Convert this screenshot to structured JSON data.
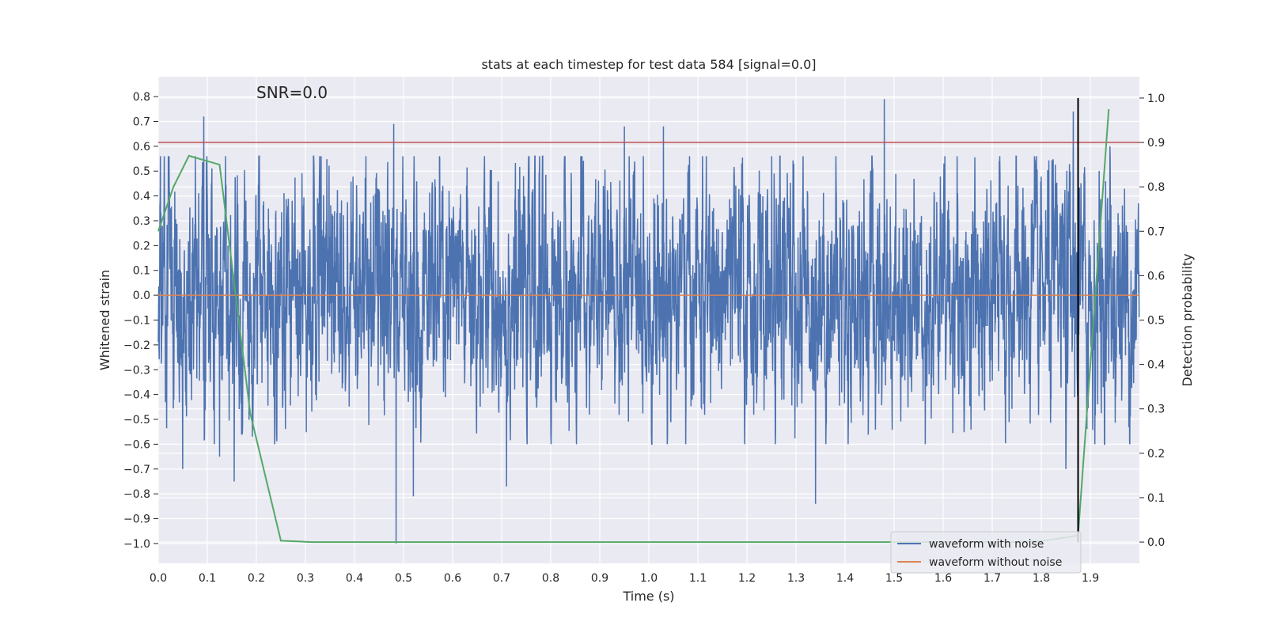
{
  "colors": {
    "background": "#ffffff",
    "plot_bg": "#eaeaf2",
    "grid": "#ffffff",
    "noise": "#4c72b0",
    "clean": "#dd8452",
    "probability": "#55a868",
    "threshold": "#c44e52",
    "marker": "#000000",
    "text": "#262626"
  },
  "chart_data": {
    "type": "line",
    "title": "stats at each timestep for test data 584 [signal=0.0]",
    "annotation": "SNR=0.0",
    "xlabel": "Time (s)",
    "ylabel": "Whitened strain",
    "y2label": "Detection probability",
    "xlim": [
      0.0,
      2.0
    ],
    "ylim": [
      -1.08,
      0.88
    ],
    "y2lim": [
      -0.048,
      1.048
    ],
    "xticks": [
      0.0,
      0.1,
      0.2,
      0.3,
      0.4,
      0.5,
      0.6,
      0.7,
      0.8,
      0.9,
      1.0,
      1.1,
      1.2,
      1.3,
      1.4,
      1.5,
      1.6,
      1.7,
      1.8,
      1.9
    ],
    "xtick_labels": [
      "0.0",
      "0.1",
      "0.2",
      "0.3",
      "0.4",
      "0.5",
      "0.6",
      "0.7",
      "0.8",
      "0.9",
      "1.0",
      "1.1",
      "1.2",
      "1.3",
      "1.4",
      "1.5",
      "1.6",
      "1.7",
      "1.8",
      "1.9"
    ],
    "yticks": [
      -1.0,
      -0.9,
      -0.8,
      -0.7,
      -0.6,
      -0.5,
      -0.4,
      -0.3,
      -0.2,
      -0.1,
      0.0,
      0.1,
      0.2,
      0.3,
      0.4,
      0.5,
      0.6,
      0.7,
      0.8
    ],
    "ytick_labels": [
      "−1.0",
      "−0.9",
      "−0.8",
      "−0.7",
      "−0.6",
      "−0.5",
      "−0.4",
      "−0.3",
      "−0.2",
      "−0.1",
      "0.0",
      "0.1",
      "0.2",
      "0.3",
      "0.4",
      "0.5",
      "0.6",
      "0.7",
      "0.8"
    ],
    "y2ticks": [
      0.0,
      0.1,
      0.2,
      0.3,
      0.4,
      0.5,
      0.6,
      0.7,
      0.8,
      0.9,
      1.0
    ],
    "y2tick_labels": [
      "0.0",
      "0.1",
      "0.2",
      "0.3",
      "0.4",
      "0.5",
      "0.6",
      "0.7",
      "0.8",
      "0.9",
      "1.0"
    ],
    "grid": true,
    "legend": {
      "placement": "lower-right",
      "entries": [
        "waveform with noise",
        "waveform without noise"
      ]
    },
    "series": [
      {
        "name": "waveform with noise",
        "axis": "left",
        "style": "noise",
        "fs": 2048,
        "amplitude_range": [
          -1.0,
          0.8
        ],
        "peaks": [
          {
            "x": 0.093,
            "y": 0.72
          },
          {
            "x": 0.48,
            "y": 0.69
          },
          {
            "x": 0.485,
            "y": -1.0
          },
          {
            "x": 1.48,
            "y": 0.79
          },
          {
            "x": 1.34,
            "y": -0.84
          },
          {
            "x": 1.865,
            "y": 0.74
          },
          {
            "x": 0.05,
            "y": -0.7
          },
          {
            "x": 0.125,
            "y": -0.65
          },
          {
            "x": 0.155,
            "y": -0.75
          },
          {
            "x": 0.52,
            "y": -0.81
          },
          {
            "x": 0.71,
            "y": -0.77
          },
          {
            "x": 0.95,
            "y": 0.68
          },
          {
            "x": 1.03,
            "y": 0.68
          },
          {
            "x": 1.85,
            "y": -0.7
          },
          {
            "x": 1.94,
            "y": 0.6
          }
        ]
      },
      {
        "name": "waveform without noise",
        "axis": "left",
        "x": [
          0.0,
          2.0
        ],
        "y": [
          0.0,
          0.0
        ]
      },
      {
        "name": "",
        "axis": "right",
        "x": [
          0.0,
          0.031,
          0.0625,
          0.125,
          0.1875,
          0.25,
          0.3125,
          0.375,
          0.4375,
          0.5,
          0.5625,
          0.625,
          0.6875,
          0.75,
          0.8125,
          0.875,
          0.9375,
          1.0,
          1.0625,
          1.125,
          1.1875,
          1.25,
          1.3125,
          1.375,
          1.4375,
          1.5,
          1.5625,
          1.625,
          1.6875,
          1.75,
          1.8125,
          1.875,
          1.9375
        ],
        "y": [
          0.7,
          0.8,
          0.87,
          0.85,
          0.29,
          0.003,
          0.0,
          0.0,
          0.0,
          0.0,
          0.0,
          0.0,
          0.0,
          0.0,
          0.0,
          0.0,
          0.0,
          0.0,
          0.0,
          0.0,
          0.0,
          0.0,
          0.0,
          0.0,
          0.0,
          0.0,
          0.0,
          0.0,
          0.0,
          0.0,
          0.004,
          0.015,
          0.975
        ]
      }
    ],
    "hlines": [
      {
        "axis": "right",
        "y": 0.9,
        "color": "threshold"
      }
    ],
    "vlines": [
      {
        "x": 1.875,
        "y2_range": [
          0.0,
          1.0
        ],
        "color": "marker"
      }
    ]
  }
}
